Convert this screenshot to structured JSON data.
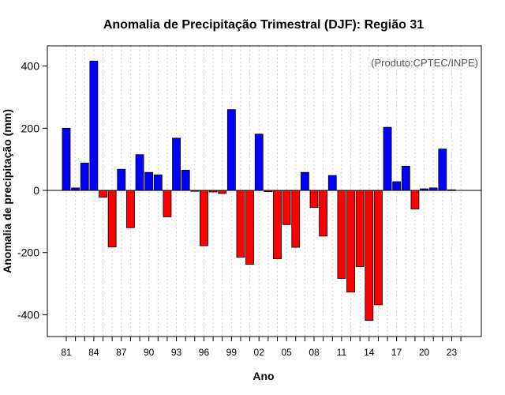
{
  "chart_data": {
    "type": "bar",
    "title": "Anomalia de Precipitação Trimestral (DJF): Região 31",
    "xlabel": "Ano",
    "ylabel": "Anomalia de precipitação (mm)",
    "annotation": "(Produto:CPTEC/INPE)",
    "ylim": [
      -470,
      465
    ],
    "yticks": [
      -400,
      -200,
      0,
      200,
      400
    ],
    "ytick_labels": [
      "-400",
      "-200",
      "0",
      "200",
      "400"
    ],
    "x": [
      1981,
      1982,
      1983,
      1984,
      1985,
      1986,
      1987,
      1988,
      1989,
      1990,
      1991,
      1992,
      1993,
      1994,
      1995,
      1996,
      1997,
      1998,
      1999,
      2000,
      2001,
      2002,
      2003,
      2004,
      2005,
      2006,
      2007,
      2008,
      2009,
      2010,
      2011,
      2012,
      2013,
      2014,
      2015,
      2016,
      2017,
      2018,
      2019,
      2020,
      2021,
      2022,
      2023
    ],
    "values": [
      200,
      8,
      88,
      416,
      -22,
      -182,
      68,
      -120,
      115,
      58,
      50,
      -85,
      168,
      65,
      -3,
      -178,
      -5,
      -10,
      260,
      -215,
      -238,
      181,
      -4,
      -220,
      -110,
      -183,
      58,
      -55,
      -147,
      48,
      -283,
      -327,
      -245,
      -418,
      -368,
      203,
      28,
      78,
      -60,
      5,
      8,
      133,
      2
    ],
    "xticks": [
      1981,
      1984,
      1987,
      1990,
      1993,
      1996,
      1999,
      2002,
      2005,
      2008,
      2011,
      2014,
      2017,
      2020,
      2023
    ],
    "xtick_labels": [
      "81",
      "84",
      "87",
      "90",
      "93",
      "96",
      "99",
      "02",
      "05",
      "08",
      "11",
      "14",
      "17",
      "20",
      "23"
    ],
    "grid": true,
    "colors": {
      "positive": "#0000ff",
      "negative": "#ff0000",
      "grid": "#cccccc",
      "zero_line": "#000000"
    }
  }
}
